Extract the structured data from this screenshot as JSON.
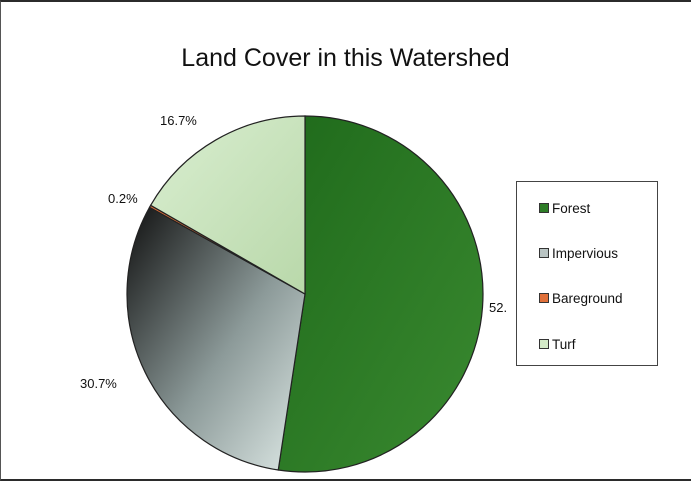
{
  "chart_data": {
    "type": "pie",
    "title": "Land Cover in this Watershed",
    "slices": [
      {
        "name": "Forest",
        "value": 52.4,
        "label": "52.",
        "color": "#2e7d27"
      },
      {
        "name": "Impervious",
        "value": 30.7,
        "label": "30.7%",
        "color": "#7a8a8a"
      },
      {
        "name": "Bareground",
        "value": 0.2,
        "label": "0.2%",
        "color": "#e0703a"
      },
      {
        "name": "Turf",
        "value": 16.7,
        "label": "16.7%",
        "color": "#c9e3bd"
      }
    ],
    "legend": {
      "placement": "right",
      "items": [
        "Forest",
        "Impervious",
        "Bareground",
        "Turf"
      ]
    }
  }
}
